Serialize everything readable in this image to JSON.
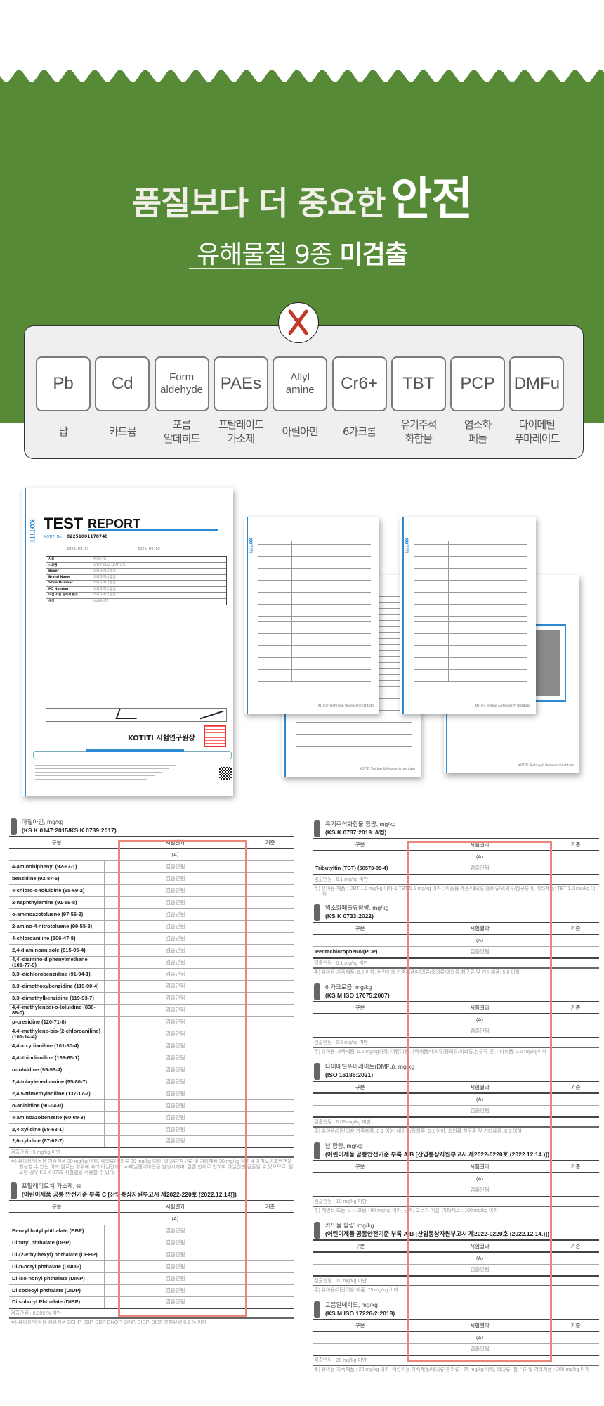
{
  "colors": {
    "brand_green": "#568a36",
    "cross_red": "#c0392b",
    "highlight_box": "#e8877a",
    "kotiti_blue": "#2d8ad0"
  },
  "header": {
    "title_main": "품질보다 더 중요한",
    "title_emph": "안전",
    "subtitle_main": "유해물질 9종",
    "subtitle_emph": "미검출",
    "badge_icon": "cross-icon"
  },
  "substances": [
    {
      "symbol": [
        "Pb"
      ],
      "name": [
        "납"
      ]
    },
    {
      "symbol": [
        "Cd"
      ],
      "name": [
        "카드뮴"
      ]
    },
    {
      "symbol": [
        "Form",
        "aldehyde"
      ],
      "name": [
        "포름",
        "알데히드"
      ]
    },
    {
      "symbol": [
        "PAEs"
      ],
      "name": [
        "프탈레이트",
        "가소제"
      ]
    },
    {
      "symbol": [
        "Allyl",
        "amine"
      ],
      "name": [
        "아릴아민"
      ]
    },
    {
      "symbol": [
        "Cr6+"
      ],
      "name": [
        "6가크롬"
      ]
    },
    {
      "symbol": [
        "TBT"
      ],
      "name": [
        "유기주석",
        "화합물"
      ]
    },
    {
      "symbol": [
        "PCP"
      ],
      "name": [
        "염소화",
        "페놀"
      ]
    },
    {
      "symbol": [
        "DMFu"
      ],
      "name": [
        "다이메틸",
        "푸마레이트"
      ]
    }
  ],
  "report": {
    "logo": "KOTITI",
    "title_a": "TEST",
    "title_b": "REPORT",
    "no_label": "KOTITI No.",
    "no_value": "82251001178740",
    "received_date": "2025. 09. 01",
    "issued_date": "2025. 09. 05",
    "info": [
      {
        "label": "시료",
        "value": "원단(가죽)"
      },
      {
        "label": "시료명",
        "value": "ARTIFICIAL LEATHER"
      },
      {
        "label": "Buyer",
        "value": "의뢰자 제시 없음"
      },
      {
        "label": "Brand Name",
        "value": "의뢰자 제시 없음"
      },
      {
        "label": "Style Number",
        "value": "의뢰자 제시 없음"
      },
      {
        "label": "PO Number",
        "value": "의뢰자 제시 없음"
      },
      {
        "label": "이전 시험 성적서 번호",
        "value": "의뢰자 제시 없음"
      },
      {
        "label": "색상",
        "value": "(A)WHITE"
      }
    ],
    "signer": "KOTITI 시험연구원장",
    "page_footer": "KOTITI Testing & Research Institute"
  },
  "table_header": [
    "구분",
    "시험결과",
    "기준"
  ],
  "sub_header": "(A)",
  "left_sections": [
    {
      "title": "아릴아민, mg/kg",
      "standard": "(KS K 0147:2015/KS K 0739:2017)",
      "rows": [
        {
          "name": "4-aminobiphenyl (92-67-1)",
          "result": "검출안됨"
        },
        {
          "name": "benzidine (92-87-5)",
          "result": "검출안됨"
        },
        {
          "name": "4-chloro-o-toluidine (95-69-2)",
          "result": "검출안됨"
        },
        {
          "name": "2-naphthylamine (91-59-8)",
          "result": "검출안됨"
        },
        {
          "name": "o-aminoazotoluene (97-56-3)",
          "result": "검출안됨"
        },
        {
          "name": "2-amino-4-nitrotoluene (99-55-8)",
          "result": "검출안됨"
        },
        {
          "name": "4-chloroaniline (106-47-8)",
          "result": "검출안됨"
        },
        {
          "name": "2,4-diaminoanisole (615-05-4)",
          "result": "검출안됨"
        },
        {
          "name": "4,4'-diamino-diphenylmethane (101-77-9)",
          "result": "검출안됨"
        },
        {
          "name": "3,3'-dichlorobenzidine (91-94-1)",
          "result": "검출안됨"
        },
        {
          "name": "3,3'-dimethoxybenzidine (119-90-4)",
          "result": "검출안됨"
        },
        {
          "name": "3,3'-dimethylbenzidine (119-93-7)",
          "result": "검출안됨"
        },
        {
          "name": "4,4'-methylenedi-o-toluidine (838-88-0)",
          "result": "검출안됨"
        },
        {
          "name": "p-cresidine (120-71-8)",
          "result": "검출안됨"
        },
        {
          "name": "4,4'-methylene-bis-(2-chloroaniline) (101-14-4)",
          "result": "검출안됨"
        },
        {
          "name": "4,4'-oxydianiline (101-80-4)",
          "result": "검출안됨"
        },
        {
          "name": "4,4'-thiodianiline (139-65-1)",
          "result": "검출안됨"
        },
        {
          "name": "o-toluidine (95-53-4)",
          "result": "검출안됨"
        },
        {
          "name": "2,4-toluylenediamine (95-80-7)",
          "result": "검출안됨"
        },
        {
          "name": "2,4,5-trimethylaniline (137-17-7)",
          "result": "검출안됨"
        },
        {
          "name": "o-anisidine (90-04-0)",
          "result": "검출안됨"
        },
        {
          "name": "4-aminoazobenzene (60-09-3)",
          "result": "검출안됨"
        },
        {
          "name": "2,4-xylidine (95-68-1)",
          "result": "검출안됨"
        },
        {
          "name": "2,6-xylidine (87-62-7)",
          "result": "검출안됨"
        }
      ],
      "limit": "검출안됨 : 5 mg/kg 미만",
      "note": "주) 유아용/아동용 가죽제품 30 mg/kg 이하, 내의류/중의류 30 mg/kg 이하, 외의류/침구류 및 기타제품 30 mg/kg 이하 4-아미노아조벤젠을 형성할 수 있는 아조 염료는 경우에 따라 아닐린과 1,4-페닐렌디아민을 발생시키며, 검출 한계로 인하여 아닐린만 검출될 수 있으므로, 필요한 경우 KS K 0739 시험법을 적용할 수 있다."
    },
    {
      "title": "프탈레이트계 가소제, %",
      "standard": "(어린이제품 공통 안전기준 부록 C [산업통상자원부고시 제2022-220호 (2022.12.14)])",
      "rows": [
        {
          "name": "Benzyl butyl phthalate (BBP)",
          "result": "검출안됨"
        },
        {
          "name": "Dibutyl phthalate (DBP)",
          "result": "검출안됨"
        },
        {
          "name": "Di-(2-ethylhexyl) phthalate (DEHP)",
          "result": "검출안됨"
        },
        {
          "name": "Di-n-octyl phthalate (DNOP)",
          "result": "검출안됨"
        },
        {
          "name": "Di-iso-nonyl phthalate (DINP)",
          "result": "검출안됨"
        },
        {
          "name": "Diisodecyl phthalate (DIDP)",
          "result": "검출안됨"
        },
        {
          "name": "Diisobutyl Phthalate (DIBP)",
          "result": "검출안됨"
        }
      ],
      "limit": "검출안됨 : 0.005 % 미만",
      "note": "주) 유아용/아동용 섬유제품 DEHP, BBP, DBP, DNOP, DINP, DIDP, DIBP 총함유량 0.1 % 이하"
    }
  ],
  "right_sections": [
    {
      "title": "유기주석화합물 함량, mg/kg",
      "standard": "(KS K 0737:2019. A법)",
      "rows": [
        {
          "name": "Tributyltin (TBT) (56573-85-4)",
          "result": "검출안됨"
        }
      ],
      "limit": "검출안됨 : 0.1 mg/kg 미만",
      "note": "주) 유아용 제품 : DBT 1.0 mg/kg 이하 & TBT 0.5 mg/kg 이하 ; 아동용 제품/내의류/중의류/외의류/침구류 및 기타제품: TBT 1.0 mg/kg 이하"
    },
    {
      "title": "염소화페놀류함량, mg/kg",
      "standard": "(KS K 0733:2022)",
      "rows": [
        {
          "name": "Pentachlorophenol(PCP)",
          "result": "검출안됨"
        }
      ],
      "limit": "검출안됨 : 0.1 mg/kg 미만",
      "note": "주) 유아용 가죽제품: 0.5 이하, 어린이용 가죽제품/내의류/중의류/외의류,침구류 및 기타제품: 5.0 이하"
    },
    {
      "title": "6 가크로뮴, mg/kg",
      "standard": "(KS M ISO 17075:2007)",
      "rows": [
        {
          "name": "",
          "result": "검출안됨"
        }
      ],
      "limit": "검출안됨 : 0.5 mg/kg 미만",
      "note": "주) 유아용 가죽제품: 0.5 mg/kg이하, 어린이용 가죽제품/내의류/중의류/외의류,침구류 및 기타제품: 3.0 mg/kg이하"
    },
    {
      "title": "다이메틸푸마레이트(DMFu), mg/kg",
      "standard": "(ISO 16186:2021)",
      "rows": [
        {
          "name": "",
          "result": "검출안됨"
        }
      ],
      "limit": "검출안됨 : 0.05 mg/kg 미만",
      "note": "주) 유아용/어린이용 가죽제품: 0.1 이하, 내의류/중의류: 0.1 이하, 외의류,침구류 및 기타제품: 0.1 이하"
    },
    {
      "title": "납 함량, mg/kg",
      "standard": "(어린이제품 공통안전기준 부록 A.B [산업통상자원부고시 제2022-0220호 (2022.12.14.)])",
      "rows": [
        {
          "name": "",
          "result": "검출안됨"
        }
      ],
      "limit": "검출안됨 : 10 mg/kg 미만",
      "note": "주) 페인트 또는 유사 코팅 : 90 mg/kg 이하, 금속, 고무자 기질, 기타재료 : 100 mg/kg 이하"
    },
    {
      "title": "카드뮴 함량, mg/kg",
      "standard": "(어린이제품 공통안전기준 부록 A.B [산업통상자원부고시 제2022-0220호 (2022.12.14.)])",
      "rows": [
        {
          "name": "",
          "result": "검출안됨"
        }
      ],
      "limit": "검출안됨 : 10 mg/kg 미만",
      "note": "주) 유아용/어린이용 제품: 75 mg/kg 이하"
    },
    {
      "title": "포름알데히드, mg/kg",
      "standard": "(KS M ISO 17226-2:2018)",
      "rows": [
        {
          "name": "",
          "result": "검출안됨"
        }
      ],
      "limit": "검출안됨 : 20 mg/kg 미만",
      "note": "주) 유아용 가죽제품 : 20 mg/kg 이하, 어린이용 가죽제품/내의류/중의류 : 75 mg/kg 이하, 외의류, 침구류 및 기타제품 : 300 mg/kg 이하"
    }
  ]
}
